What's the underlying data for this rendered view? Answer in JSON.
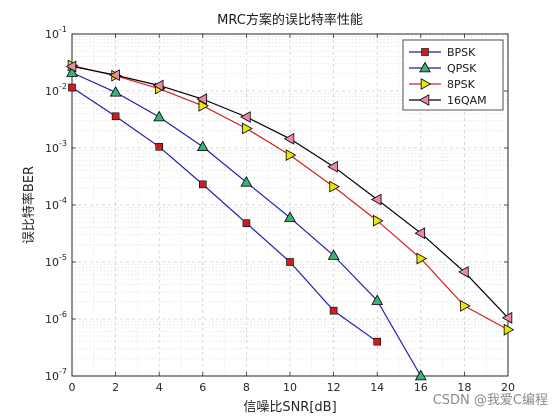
{
  "chart_data": {
    "type": "line",
    "title": "MRC方案的误比特率性能",
    "xlabel": "信噪比SNR[dB]",
    "ylabel": "误比特率BER",
    "xlim": [
      0,
      20
    ],
    "ylim": [
      1e-07,
      0.1
    ],
    "yscale": "log",
    "grid": true,
    "legend_position": "top-right",
    "x_ticks": [
      "0",
      "2",
      "4",
      "6",
      "8",
      "10",
      "12",
      "14",
      "16",
      "18",
      "20"
    ],
    "y_ticks": [
      {
        "base": "10",
        "exp": "-1",
        "value": 0.1
      },
      {
        "base": "10",
        "exp": "-2",
        "value": 0.01
      },
      {
        "base": "10",
        "exp": "-3",
        "value": 0.001
      },
      {
        "base": "10",
        "exp": "-4",
        "value": 0.0001
      },
      {
        "base": "10",
        "exp": "-5",
        "value": 1e-05
      },
      {
        "base": "10",
        "exp": "-6",
        "value": 1e-06
      },
      {
        "base": "10",
        "exp": "-7",
        "value": 1e-07
      }
    ],
    "series": [
      {
        "name": "BPSK",
        "color": "#1f1fb4",
        "marker": "square",
        "marker_fill": "#c8201e",
        "x": [
          0,
          2,
          4,
          6,
          8,
          10,
          12,
          14
        ],
        "y": [
          0.0115,
          0.0036,
          0.00105,
          0.00023,
          4.8e-05,
          1e-05,
          1.4e-06,
          4e-07
        ]
      },
      {
        "name": "QPSK",
        "color": "#1f1fb4",
        "marker": "triangle-up",
        "marker_fill": "#3cb371",
        "x": [
          0,
          2,
          4,
          6,
          8,
          10,
          12,
          14,
          16
        ],
        "y": [
          0.021,
          0.0095,
          0.0035,
          0.00105,
          0.00025,
          6e-05,
          1.3e-05,
          2.1e-06,
          1e-07
        ]
      },
      {
        "name": "8PSK",
        "color": "#d62020",
        "marker": "triangle-right",
        "marker_fill": "#e8e800",
        "x": [
          0,
          2,
          4,
          6,
          8,
          10,
          12,
          14,
          16,
          18,
          20
        ],
        "y": [
          0.028,
          0.0185,
          0.011,
          0.0055,
          0.0022,
          0.00075,
          0.00021,
          5.3e-05,
          1.15e-05,
          1.7e-06,
          6.5e-07
        ]
      },
      {
        "name": "16QAM",
        "color": "#000000",
        "marker": "triangle-left",
        "marker_fill": "#e88aa0",
        "x": [
          0,
          2,
          4,
          6,
          8,
          10,
          12,
          14,
          16,
          18,
          20
        ],
        "y": [
          0.027,
          0.019,
          0.0125,
          0.0072,
          0.0035,
          0.00145,
          0.00047,
          0.000125,
          3.2e-05,
          6.7e-06,
          1.05e-06
        ]
      }
    ]
  },
  "watermark": "CSDN @我爱C编程"
}
